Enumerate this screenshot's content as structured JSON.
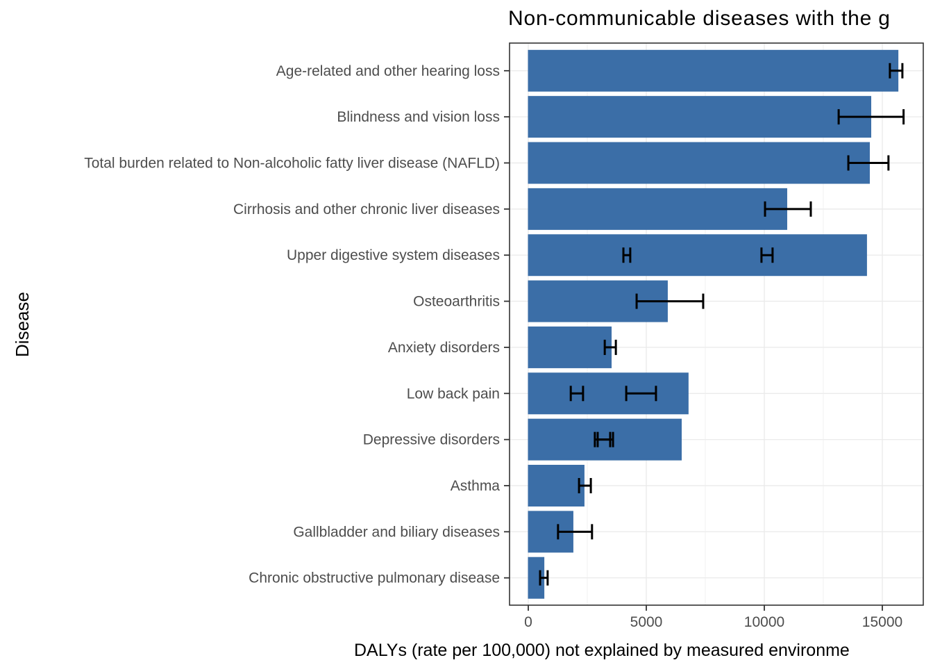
{
  "chart_data": {
    "type": "bar",
    "orientation": "horizontal",
    "title": "Non-communicable diseases with the g",
    "xlabel": "DALYs (rate per 100,000) not explained by measured environme",
    "ylabel": "Disease",
    "x_axis": {
      "major_ticks": [
        0,
        5000,
        10000,
        15000
      ],
      "tick_labels": [
        "0",
        "5000",
        "10000",
        "15000"
      ],
      "minor_ticks": [
        2500,
        7500,
        12500
      ],
      "xlim": [
        -795,
        16730
      ]
    },
    "grid": true,
    "legend": false,
    "rows": [
      {
        "label": "Age-related and other hearing loss",
        "value": 15680,
        "errors": [
          [
            15320,
            15850
          ]
        ]
      },
      {
        "label": "Blindness and vision loss",
        "value": 14530,
        "errors": [
          [
            13150,
            15900
          ]
        ]
      },
      {
        "label": "Total burden related to Non-alcoholic fatty liver disease (NAFLD)",
        "value": 14470,
        "errors": [
          [
            13560,
            15260
          ]
        ]
      },
      {
        "label": "Cirrhosis and other chronic liver diseases",
        "value": 10970,
        "errors": [
          [
            10030,
            11970
          ]
        ]
      },
      {
        "label": "Upper digestive system diseases",
        "value": 14350,
        "errors": [
          [
            4030,
            4320
          ],
          [
            9880,
            10350
          ]
        ]
      },
      {
        "label": "Osteoarthritis",
        "value": 5910,
        "errors": [
          [
            4590,
            7410
          ]
        ]
      },
      {
        "label": "Anxiety disorders",
        "value": 3530,
        "errors": [
          [
            3240,
            3710
          ]
        ]
      },
      {
        "label": "Low back pain",
        "value": 6790,
        "errors": [
          [
            1800,
            2320
          ],
          [
            4150,
            5410
          ]
        ]
      },
      {
        "label": "Depressive disorders",
        "value": 6500,
        "errors": [
          [
            2820,
            3470
          ],
          [
            2940,
            3590
          ]
        ]
      },
      {
        "label": "Asthma",
        "value": 2380,
        "errors": [
          [
            2150,
            2650
          ]
        ]
      },
      {
        "label": "Gallbladder and biliary diseases",
        "value": 1910,
        "errors": [
          [
            1260,
            2700
          ]
        ]
      },
      {
        "label": "Chronic obstructive pulmonary disease",
        "value": 680,
        "errors": [
          [
            500,
            820
          ]
        ]
      }
    ]
  },
  "colors": {
    "bar_fill": "#3B6EA7",
    "grid_major": "#EBEBEB",
    "grid_minor": "#EFEFEF",
    "panel_border": "#333333",
    "tick_mark": "#333333",
    "tick_text": "#4D4D4D",
    "error_bar": "#000000",
    "background": "#FFFFFF"
  }
}
